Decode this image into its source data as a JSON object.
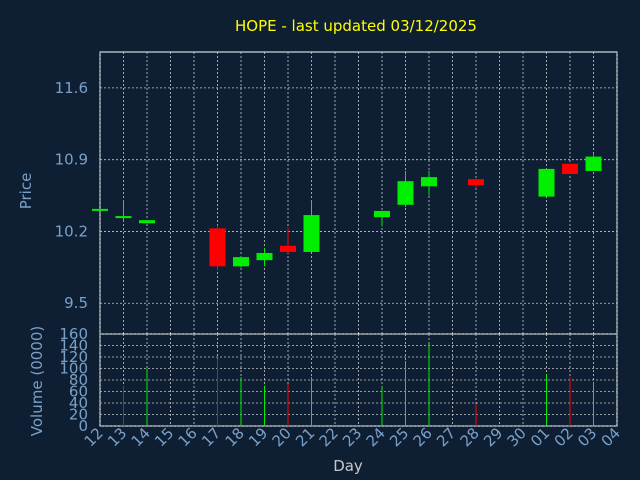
{
  "chart_data": [
    {
      "type": "candlestick",
      "title": "HOPE - last updated 03/12/2025",
      "ylabel": "Price",
      "ylim": [
        9.2,
        11.95
      ],
      "grid": true,
      "y_ticks": [
        "11.6",
        "10.9",
        "10.2",
        "9.5"
      ],
      "x_ticks": [
        "12",
        "13",
        "14",
        "15",
        "16",
        "17",
        "18",
        "19",
        "20",
        "21",
        "22",
        "23",
        "24",
        "25",
        "26",
        "27",
        "28",
        "29",
        "30",
        "01",
        "02",
        "03",
        "04"
      ],
      "candles": [
        {
          "x": "12",
          "open": 10.42,
          "close": 10.42,
          "high": 10.42,
          "low": 10.42
        },
        {
          "x": "13",
          "open": 10.35,
          "close": 10.35,
          "high": 10.5,
          "low": 10.3
        },
        {
          "x": "14",
          "open": 10.28,
          "close": 10.31,
          "high": 10.31,
          "low": 10.28
        },
        {
          "x": "17",
          "open": 10.23,
          "close": 9.86,
          "high": 10.26,
          "low": 9.82
        },
        {
          "x": "18",
          "open": 9.86,
          "close": 9.95,
          "high": 9.96,
          "low": 9.85
        },
        {
          "x": "19",
          "open": 9.92,
          "close": 9.99,
          "high": 10.04,
          "low": 9.86
        },
        {
          "x": "20",
          "open": 10.06,
          "close": 10.0,
          "high": 10.24,
          "low": 9.99
        },
        {
          "x": "21",
          "open": 10.0,
          "close": 10.36,
          "high": 10.5,
          "low": 10.0
        },
        {
          "x": "24",
          "open": 10.34,
          "close": 10.4,
          "high": 10.4,
          "low": 10.25
        },
        {
          "x": "25",
          "open": 10.46,
          "close": 10.69,
          "high": 10.79,
          "low": 10.44
        },
        {
          "x": "26",
          "open": 10.64,
          "close": 10.73,
          "high": 10.79,
          "low": 10.55
        },
        {
          "x": "28",
          "open": 10.71,
          "close": 10.65,
          "high": 10.71,
          "low": 10.62
        },
        {
          "x": "01",
          "open": 10.54,
          "close": 10.81,
          "high": 10.81,
          "low": 10.54
        },
        {
          "x": "02",
          "open": 10.86,
          "close": 10.76,
          "high": 10.86,
          "low": 10.76
        },
        {
          "x": "03",
          "open": 10.79,
          "close": 10.93,
          "high": 10.95,
          "low": 10.79
        }
      ],
      "colors": {
        "up": "#00ee00",
        "down": "#ff0000",
        "background": "#0f1f33",
        "grid": "#c8c8c8",
        "axis_text": "#7aa0c8",
        "title": "#ffff00"
      }
    },
    {
      "type": "bar",
      "ylabel": "Volume (0000)",
      "xlabel": "Day",
      "ylim": [
        0,
        160
      ],
      "y_ticks": [
        "160",
        "140",
        "120",
        "100",
        "80",
        "60",
        "40",
        "20",
        "0"
      ],
      "categories": [
        "13",
        "14",
        "17",
        "18",
        "19",
        "20",
        "21",
        "24",
        "25",
        "26",
        "28",
        "01",
        "02",
        "03"
      ],
      "values": [
        70,
        100,
        117,
        85,
        70,
        73,
        85,
        68,
        113,
        143,
        38,
        90,
        85,
        75
      ],
      "directions": [
        "down",
        "up",
        "down",
        "up",
        "up",
        "down",
        "up",
        "up",
        "up",
        "up",
        "down",
        "up",
        "down",
        "up"
      ]
    }
  ]
}
